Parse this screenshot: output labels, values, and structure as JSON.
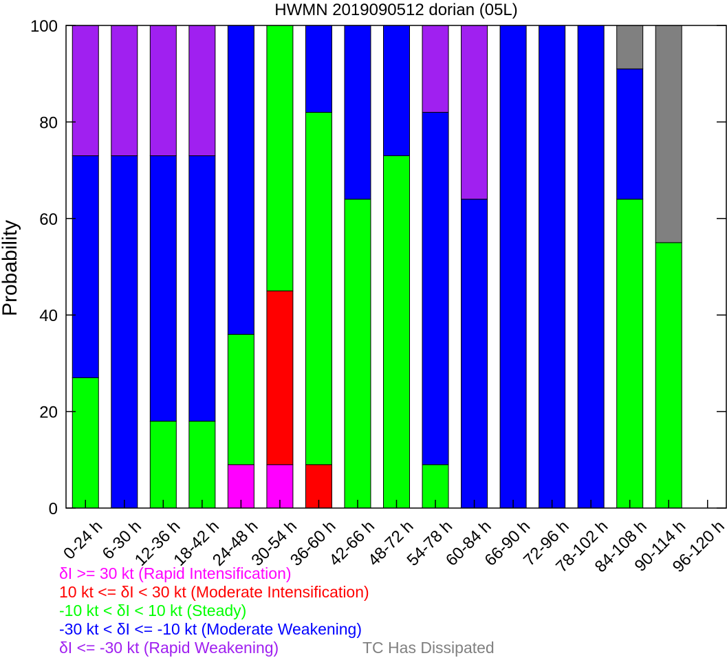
{
  "chart_data": {
    "type": "bar",
    "stacked": true,
    "title": "HWMN 2019090512 dorian (05L)",
    "xlabel": "",
    "ylabel": "Probability",
    "ylim": [
      0,
      100
    ],
    "yticks": [
      0,
      20,
      40,
      60,
      80,
      100
    ],
    "grid": false,
    "categories": [
      "0-24 h",
      "6-30 h",
      "12-36 h",
      "18-42 h",
      "24-48 h",
      "30-54 h",
      "36-60 h",
      "42-66 h",
      "48-72 h",
      "54-78 h",
      "60-84 h",
      "66-90 h",
      "72-96 h",
      "78-102 h",
      "84-108 h",
      "90-114 h",
      "96-120 h"
    ],
    "series": [
      {
        "name": "δI >= 30 kt (Rapid Intensification)",
        "color": "#ff00ff",
        "values": [
          0,
          0,
          0,
          0,
          9,
          9,
          0,
          0,
          0,
          0,
          0,
          0,
          0,
          0,
          0,
          0,
          0
        ]
      },
      {
        "name": "10 kt <= δI < 30 kt (Moderate Intensification)",
        "color": "#ff0000",
        "values": [
          0,
          0,
          0,
          0,
          0,
          36,
          9,
          0,
          0,
          0,
          0,
          0,
          0,
          0,
          0,
          0,
          0
        ]
      },
      {
        "name": "-10 kt < δI < 10 kt (Steady)",
        "color": "#00ff00",
        "values": [
          27,
          0,
          18,
          18,
          27,
          55,
          73,
          64,
          73,
          9,
          0,
          0,
          0,
          0,
          64,
          55,
          0
        ]
      },
      {
        "name": "-30 kt < δI <= -10 kt (Moderate Weakening)",
        "color": "#0000ff",
        "values": [
          46,
          73,
          55,
          55,
          64,
          0,
          18,
          36,
          27,
          73,
          64,
          100,
          100,
          100,
          27,
          0,
          0
        ]
      },
      {
        "name": "δI <= -30 kt (Rapid Weakening)",
        "color": "#a020f0",
        "values": [
          27,
          27,
          27,
          27,
          0,
          0,
          0,
          0,
          0,
          18,
          36,
          0,
          0,
          0,
          0,
          0,
          0
        ]
      },
      {
        "name": "TC Has Dissipated",
        "color": "#808080",
        "values": [
          0,
          0,
          0,
          0,
          0,
          0,
          0,
          0,
          0,
          0,
          0,
          0,
          0,
          0,
          9,
          45,
          0
        ]
      }
    ],
    "legend_placement": "bottom-left"
  }
}
